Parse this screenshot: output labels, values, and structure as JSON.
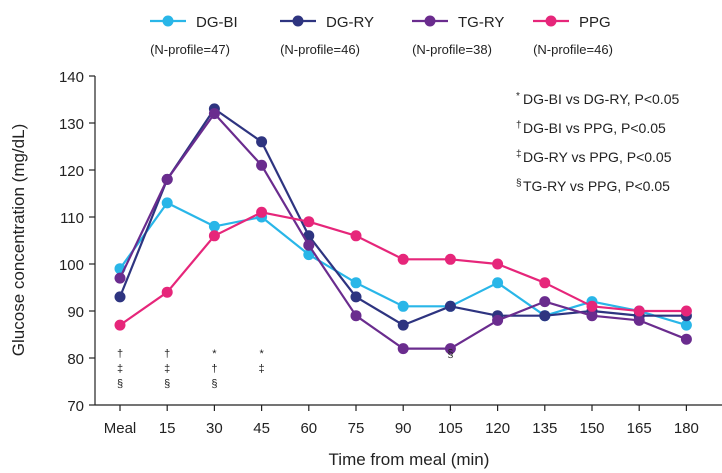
{
  "chart_data": {
    "type": "line",
    "xlabel": "Time from meal (min)",
    "ylabel": "Glucose concentration (mg/dL)",
    "categories": [
      "Meal",
      "15",
      "30",
      "45",
      "60",
      "75",
      "90",
      "105",
      "120",
      "135",
      "150",
      "165",
      "180"
    ],
    "ylim": [
      70,
      140
    ],
    "yticks": [
      70,
      80,
      90,
      100,
      110,
      120,
      130,
      140
    ],
    "grid": false,
    "legend_position": "top",
    "series": [
      {
        "name": "DG-BI",
        "n_label": "(N-profile=47)",
        "color": "#29b6e8",
        "values": [
          99,
          113,
          108,
          110,
          102,
          96,
          91,
          91,
          96,
          89,
          92,
          90,
          87
        ]
      },
      {
        "name": "DG-RY",
        "n_label": "(N-profile=46)",
        "color": "#2e3480",
        "values": [
          93,
          118,
          133,
          126,
          106,
          93,
          87,
          91,
          89,
          89,
          90,
          89,
          89
        ]
      },
      {
        "name": "TG-RY",
        "n_label": "(N-profile=38)",
        "color": "#6a2c8e",
        "values": [
          97,
          118,
          132,
          121,
          104,
          89,
          82,
          82,
          88,
          92,
          89,
          88,
          84
        ]
      },
      {
        "name": "PPG",
        "n_label": "(N-profile=46)",
        "color": "#e6267a",
        "values": [
          87,
          94,
          106,
          111,
          109,
          106,
          101,
          101,
          100,
          96,
          91,
          90,
          90
        ]
      }
    ],
    "significance_marks": [
      {
        "category": "Meal",
        "symbols": [
          "†",
          "‡",
          "§"
        ]
      },
      {
        "category": "15",
        "symbols": [
          "†",
          "‡",
          "§"
        ]
      },
      {
        "category": "30",
        "symbols": [
          "*",
          "†",
          "§"
        ]
      },
      {
        "category": "45",
        "symbols": [
          "*",
          "‡"
        ]
      },
      {
        "category": "105",
        "symbols": [
          "§"
        ]
      }
    ],
    "annotations": [
      {
        "symbol": "*",
        "text": "DG-BI vs DG-RY, P<0.05"
      },
      {
        "symbol": "†",
        "text": "DG-BI vs PPG, P<0.05"
      },
      {
        "symbol": "‡",
        "text": "DG-RY vs PPG, P<0.05"
      },
      {
        "symbol": "§",
        "text": "TG-RY vs PPG, P<0.05"
      }
    ]
  }
}
